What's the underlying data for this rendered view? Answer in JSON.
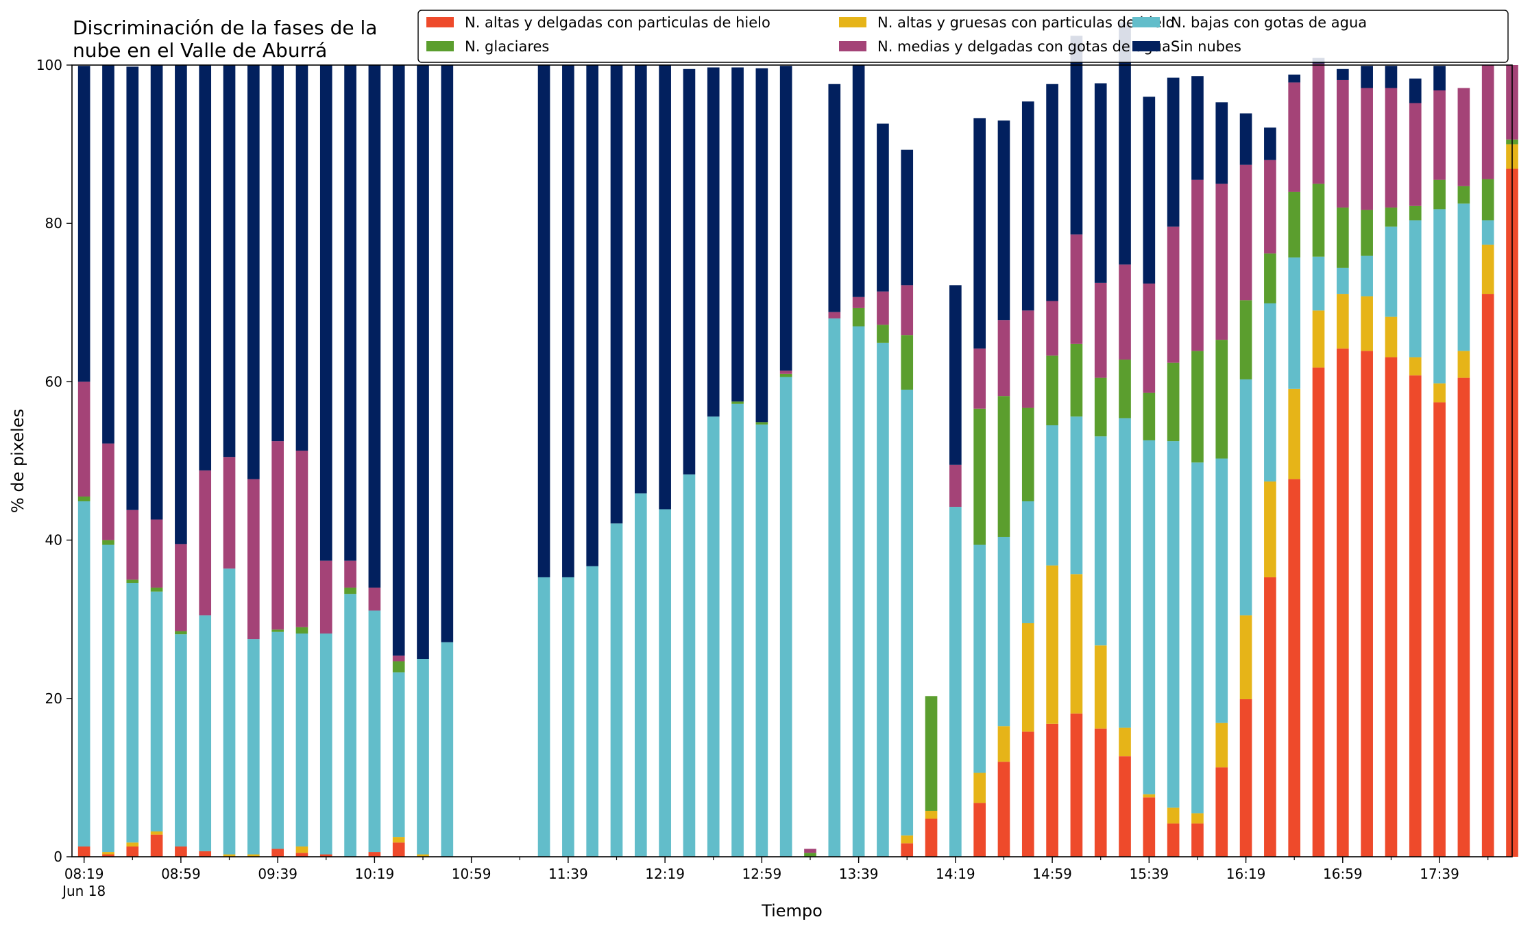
{
  "chart_data": {
    "type": "bar",
    "stacked": true,
    "title_lines": [
      "Discriminación de la fases de la",
      "nube en el Valle de Aburrá"
    ],
    "xlabel": "Tiempo",
    "ylabel": "% de pixeles",
    "ylim": [
      0,
      100
    ],
    "yticks": [
      0,
      20,
      40,
      60,
      80,
      100
    ],
    "x_start": "08:19",
    "x_step_minutes": 10,
    "xlim_minutes": [
      -5,
      590
    ],
    "xtick_labels": [
      {
        "minute": 0,
        "text": "08:19",
        "sub": "Jun 18"
      },
      {
        "minute": 40,
        "text": "08:59",
        "sub": ""
      },
      {
        "minute": 80,
        "text": "09:39",
        "sub": ""
      },
      {
        "minute": 120,
        "text": "10:19",
        "sub": ""
      },
      {
        "minute": 160,
        "text": "10:59",
        "sub": ""
      },
      {
        "minute": 200,
        "text": "11:39",
        "sub": ""
      },
      {
        "minute": 240,
        "text": "12:19",
        "sub": ""
      },
      {
        "minute": 280,
        "text": "12:59",
        "sub": ""
      },
      {
        "minute": 320,
        "text": "13:39",
        "sub": ""
      },
      {
        "minute": 360,
        "text": "14:19",
        "sub": ""
      },
      {
        "minute": 400,
        "text": "14:59",
        "sub": ""
      },
      {
        "minute": 440,
        "text": "15:39",
        "sub": ""
      },
      {
        "minute": 480,
        "text": "16:19",
        "sub": ""
      },
      {
        "minute": 520,
        "text": "16:59",
        "sub": ""
      },
      {
        "minute": 560,
        "text": "17:39",
        "sub": ""
      }
    ],
    "grid": false,
    "legend_position": "top-right",
    "legend_order": [
      0,
      3,
      1,
      4,
      2,
      5
    ],
    "series": [
      {
        "name": "N. altas y delgadas con particulas de hielo",
        "color": "#ee4a2b",
        "values": [
          1.3,
          0.3,
          1.3,
          2.8,
          1.3,
          0.7,
          0,
          0,
          1.0,
          0.5,
          0.3,
          0,
          0.6,
          1.8,
          0,
          0,
          null,
          null,
          null,
          0,
          0,
          0,
          0,
          0,
          0,
          0,
          0,
          0,
          0,
          0,
          null,
          0,
          0,
          0,
          1.7,
          4.8,
          null,
          6.8,
          12.0,
          15.8,
          16.8,
          18.1,
          16.2,
          12.7,
          7.5,
          4.2,
          4.2,
          11.3,
          19.9,
          35.3,
          47.7,
          61.8,
          64.2,
          63.9,
          63.1,
          60.8,
          57.4,
          60.5,
          71.1,
          86.9
        ]
      },
      {
        "name": "N. altas y gruesas con particulas de hielo",
        "color": "#e6b418",
        "values": [
          0,
          0.3,
          0.5,
          0.4,
          0,
          0,
          0.3,
          0.3,
          0,
          0.8,
          0,
          0,
          0,
          0.7,
          0.3,
          0,
          null,
          null,
          null,
          0,
          0,
          0,
          0,
          0,
          0,
          0,
          0,
          0,
          0,
          0,
          null,
          0,
          0,
          0,
          1.0,
          1.0,
          null,
          3.8,
          4.5,
          13.7,
          20.0,
          17.6,
          10.5,
          3.6,
          0.4,
          2.0,
          1.3,
          5.6,
          10.6,
          12.1,
          11.4,
          7.2,
          6.9,
          6.9,
          5.1,
          2.3,
          2.4,
          3.4,
          6.2,
          3.1
        ]
      },
      {
        "name": "N. bajas con gotas de agua",
        "color": "#62bdca",
        "values": [
          43.6,
          38.8,
          32.8,
          30.3,
          26.8,
          29.8,
          36.1,
          27.2,
          27.4,
          26.9,
          27.9,
          33.2,
          30.5,
          20.8,
          24.7,
          27.1,
          null,
          null,
          null,
          35.3,
          35.3,
          36.7,
          42.1,
          45.9,
          43.9,
          48.3,
          55.6,
          57.2,
          54.6,
          60.6,
          null,
          68.0,
          67.0,
          64.9,
          56.3,
          null,
          44.2,
          28.8,
          23.9,
          15.4,
          17.7,
          19.9,
          26.4,
          39.1,
          44.7,
          46.3,
          44.3,
          33.4,
          29.8,
          22.5,
          16.6,
          6.8,
          3.3,
          5.1,
          11.4,
          17.3,
          22.0,
          18.6,
          3.1,
          0
        ]
      },
      {
        "name": "N. glaciares",
        "color": "#5b9e2e",
        "values": [
          0.6,
          0.6,
          0.4,
          0.5,
          0.4,
          0,
          0,
          0,
          0.3,
          0.8,
          0,
          0.8,
          0,
          1.4,
          0,
          0,
          null,
          null,
          null,
          0,
          0,
          0,
          0,
          0,
          0,
          0,
          0,
          0.3,
          0.3,
          0.4,
          0.5,
          null,
          2.3,
          2.3,
          6.9,
          14.5,
          null,
          17.2,
          17.8,
          11.8,
          8.8,
          9.2,
          7.4,
          7.4,
          6.0,
          9.9,
          14.1,
          15.0,
          10.0,
          6.3,
          8.3,
          9.2,
          7.6,
          5.8,
          2.4,
          1.8,
          3.7,
          2.2,
          5.2,
          0.6
        ]
      },
      {
        "name": "N. medias y delgadas con gotas de agua",
        "color": "#a44377",
        "values": [
          14.5,
          12.2,
          8.8,
          8.6,
          11.0,
          18.3,
          14.1,
          20.2,
          23.8,
          22.3,
          9.2,
          3.4,
          2.9,
          0.7,
          0,
          0,
          null,
          null,
          null,
          0,
          0,
          0,
          0,
          0,
          0,
          0,
          0,
          0,
          0,
          0.4,
          0.5,
          0.8,
          1.4,
          4.2,
          6.3,
          null,
          5.3,
          7.6,
          9.6,
          12.3,
          6.9,
          13.8,
          12.0,
          12.0,
          13.8,
          17.2,
          21.6,
          19.7,
          17.1,
          11.8,
          13.8,
          15.2,
          16.1,
          15.4,
          15.1,
          13.0,
          11.3,
          12.4,
          14.4,
          9.4
        ]
      },
      {
        "name": "Sin nubes",
        "color": "#02205e",
        "values": [
          39.9,
          47.8,
          56.0,
          57.4,
          60.5,
          51.2,
          49.5,
          52.3,
          47.5,
          48.7,
          62.6,
          62.6,
          66.0,
          74.6,
          75.0,
          72.9,
          null,
          null,
          null,
          64.7,
          64.7,
          63.3,
          57.9,
          54.1,
          56.1,
          51.2,
          44.1,
          42.2,
          44.7,
          38.5,
          null,
          28.8,
          29.3,
          21.2,
          17.1,
          null,
          22.7,
          29.1,
          25.2,
          26.4,
          27.4,
          25.1,
          25.2,
          30.6,
          23.6,
          18.8,
          13.1,
          10.3,
          6.5,
          4.1,
          1.0,
          0.7,
          1.4,
          2.8,
          2.8,
          3.1,
          3.1,
          0,
          0,
          0
        ]
      }
    ]
  }
}
